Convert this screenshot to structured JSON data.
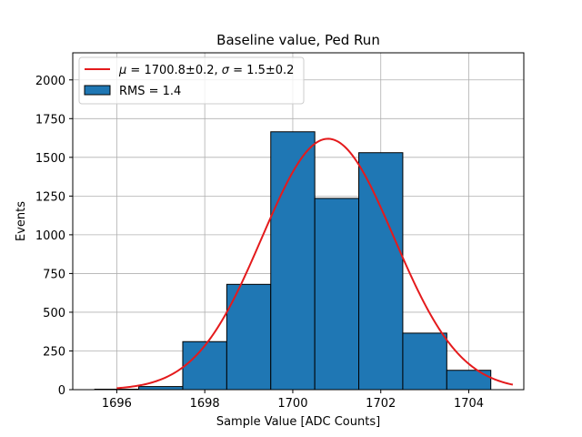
{
  "chart_data": {
    "type": "histogram",
    "title": "Baseline value, Ped Run",
    "xlabel": "Sample Value [ADC Counts]",
    "ylabel": "Events",
    "xlim": [
      1695.0,
      1705.25
    ],
    "ylim": [
      0,
      2175
    ],
    "xticks": [
      1696,
      1698,
      1700,
      1702,
      1704
    ],
    "xtick_labels": [
      "1696",
      "1698",
      "1700",
      "1702",
      "1704"
    ],
    "yticks": [
      0,
      250,
      500,
      750,
      1000,
      1250,
      1500,
      1750,
      2000
    ],
    "ytick_labels": [
      "0",
      "250",
      "500",
      "750",
      "1000",
      "1250",
      "1500",
      "1750",
      "2000"
    ],
    "grid": true,
    "legend_position": "top-left",
    "histogram": {
      "label": "RMS = 1.4",
      "bin_edges": [
        1695.5,
        1696.5,
        1697.5,
        1698.5,
        1699.5,
        1700.5,
        1701.5,
        1702.5,
        1703.5,
        1704.5
      ],
      "counts": [
        3,
        20,
        310,
        680,
        1665,
        1235,
        1530,
        365,
        125
      ],
      "color": "#1f77b4",
      "edgecolor": "#000000"
    },
    "fit": {
      "label": "$\\mu = 1700.8\\pm0.2$, $\\sigma = 1.5\\pm0.2$",
      "label_mu_sym": "μ",
      "label_mu_text": " = 1700.8±0.2, ",
      "label_sigma_sym": "σ",
      "label_sigma_text": " = 1.5±0.2",
      "mu": 1700.8,
      "sigma": 1.5,
      "amplitude": 1620,
      "x_range": [
        1696.0,
        1705.0
      ],
      "color": "#e41a1c"
    }
  }
}
